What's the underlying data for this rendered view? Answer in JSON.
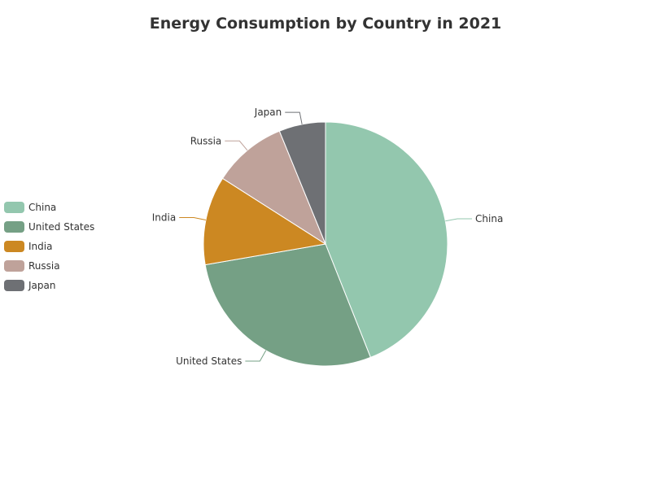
{
  "chart_data": {
    "type": "pie",
    "title": "Energy Consumption by Country in 2021",
    "legend_position": "left",
    "categories": [
      "China",
      "United States",
      "India",
      "Russia",
      "Japan"
    ],
    "values": [
      157,
      101,
      42,
      35,
      22
    ],
    "colors": [
      "#93c7ae",
      "#75a085",
      "#cc8822",
      "#bfa29a",
      "#6e7074"
    ]
  }
}
